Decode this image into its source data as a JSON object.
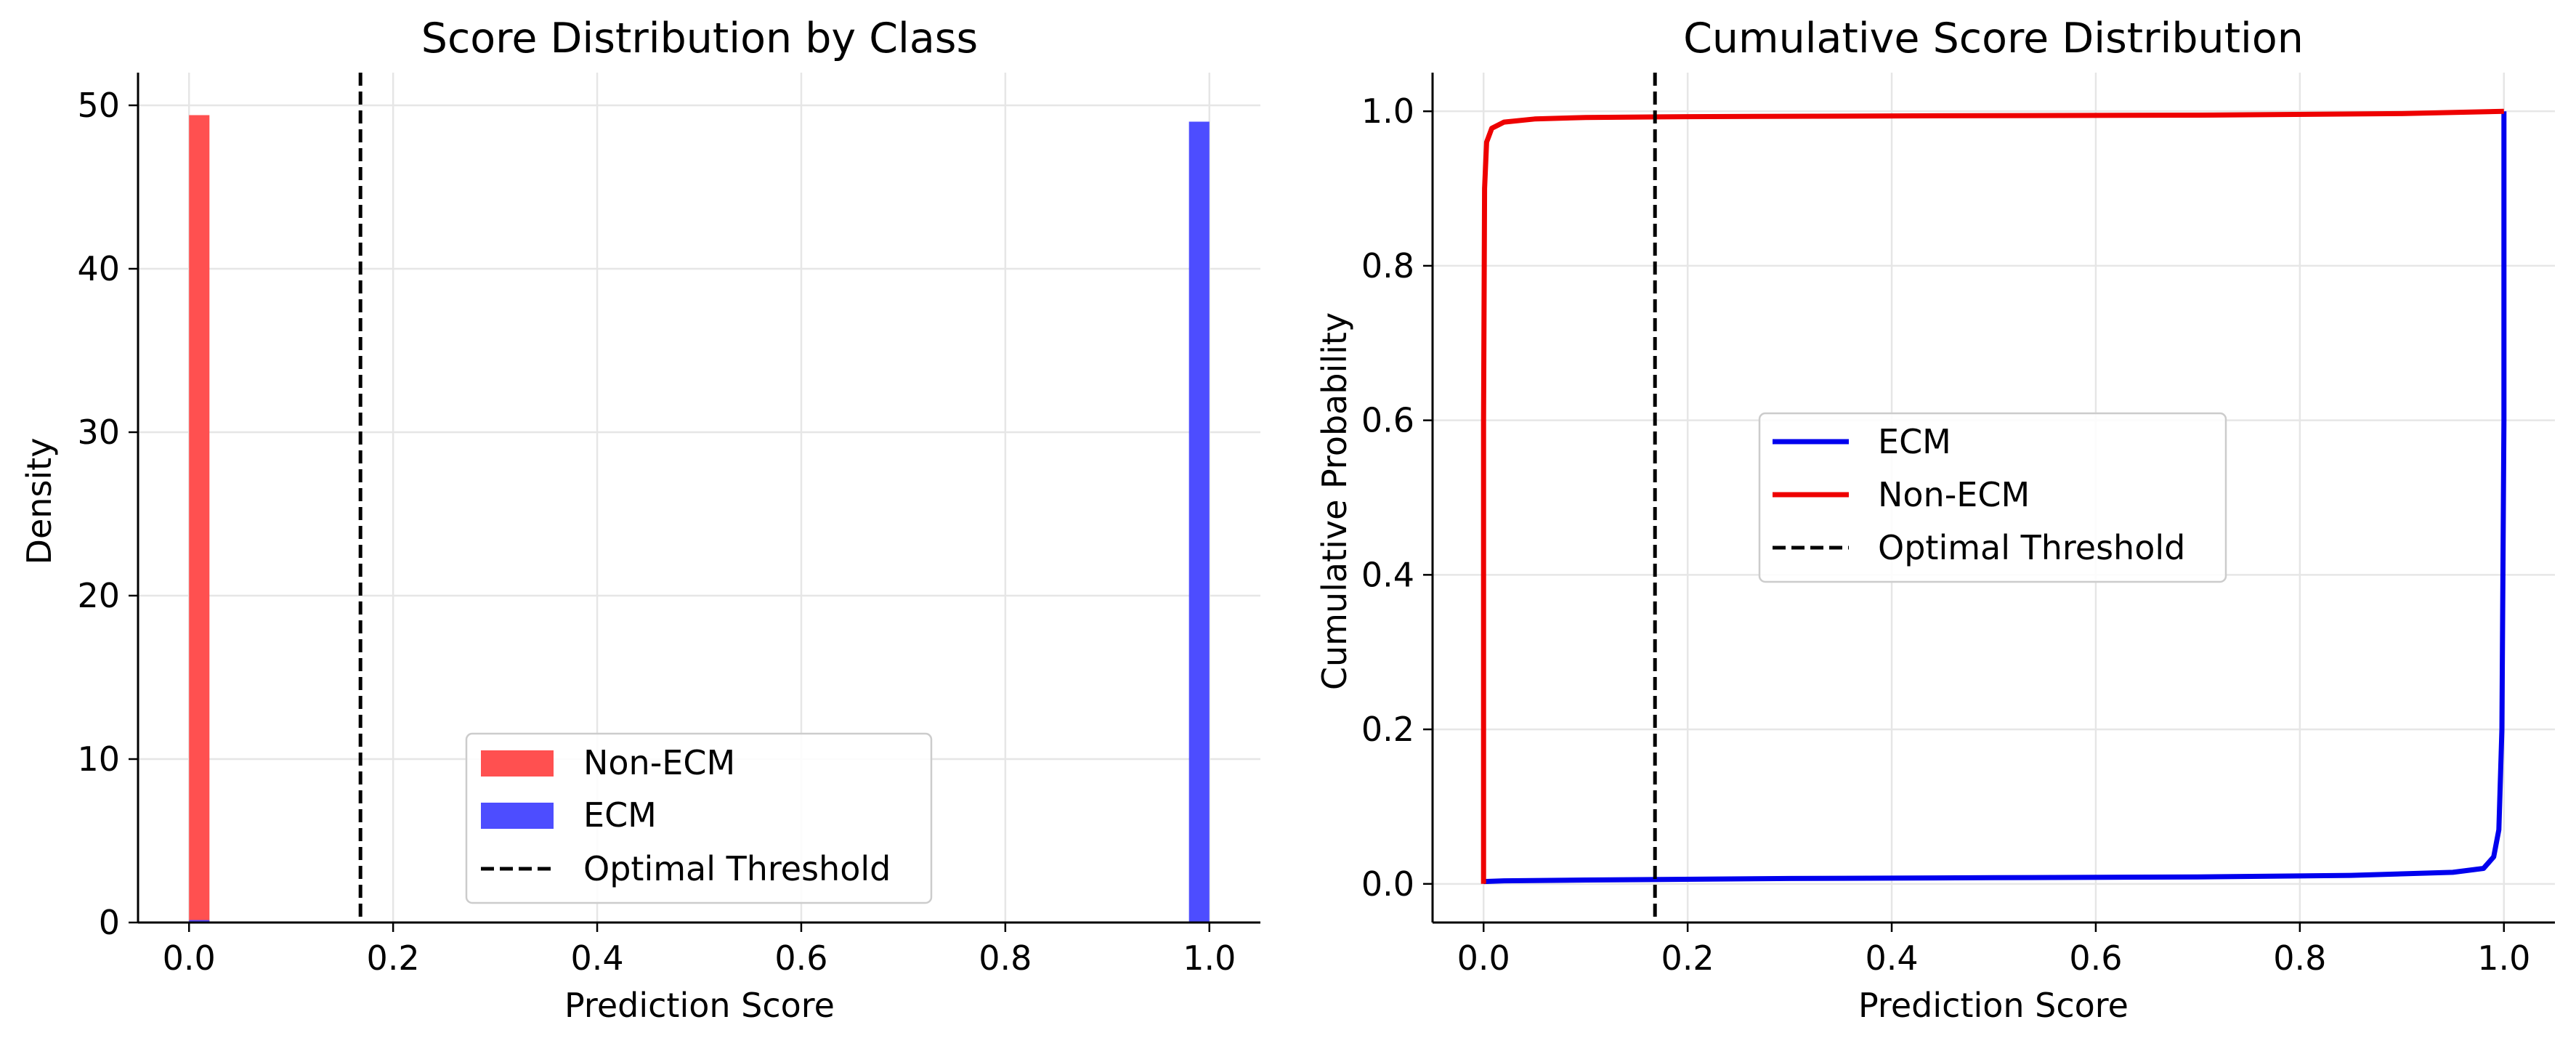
{
  "chart_data": [
    {
      "type": "bar",
      "title": "Score Distribution by Class",
      "xlabel": "Prediction Score",
      "ylabel": "Density",
      "xlim": [
        -0.05,
        1.05
      ],
      "ylim": [
        0,
        52
      ],
      "xticks": [
        "0.0",
        "0.2",
        "0.4",
        "0.6",
        "0.8",
        "1.0"
      ],
      "yticks": [
        "0",
        "10",
        "20",
        "30",
        "40",
        "50"
      ],
      "grid": true,
      "legend_position": "bottom-center",
      "bin_width": 0.02,
      "series": [
        {
          "name": "Non-ECM",
          "color": "#ff5050",
          "bins": [
            {
              "x0": 0.0,
              "x1": 0.02,
              "density": 49.4
            }
          ]
        },
        {
          "name": "ECM",
          "color": "#4d4dff",
          "bins": [
            {
              "x0": 0.0,
              "x1": 0.02,
              "density": 0.15
            },
            {
              "x0": 0.98,
              "x1": 1.0,
              "density": 49.0
            }
          ]
        }
      ],
      "threshold": {
        "name": "Optimal Threshold",
        "x": 0.168,
        "color": "#000000"
      }
    },
    {
      "type": "line",
      "title": "Cumulative Score Distribution",
      "xlabel": "Prediction Score",
      "ylabel": "Cumulative Probability",
      "xlim": [
        -0.05,
        1.05
      ],
      "ylim": [
        -0.05,
        1.05
      ],
      "xticks": [
        "0.0",
        "0.2",
        "0.4",
        "0.6",
        "0.8",
        "1.0"
      ],
      "yticks": [
        "0.0",
        "0.2",
        "0.4",
        "0.6",
        "0.8",
        "1.0"
      ],
      "grid": true,
      "legend_position": "center",
      "series": [
        {
          "name": "ECM",
          "color": "#0000ee",
          "x": [
            0.0,
            0.02,
            0.1,
            0.3,
            0.5,
            0.7,
            0.85,
            0.95,
            0.98,
            0.99,
            0.995,
            0.998,
            1.0,
            1.0
          ],
          "y": [
            0.003,
            0.004,
            0.005,
            0.007,
            0.008,
            0.009,
            0.011,
            0.015,
            0.02,
            0.035,
            0.07,
            0.2,
            0.6,
            1.0
          ]
        },
        {
          "name": "Non-ECM",
          "color": "#ee0000",
          "x": [
            0.0,
            0.0,
            0.001,
            0.003,
            0.008,
            0.02,
            0.05,
            0.1,
            0.2,
            0.4,
            0.7,
            0.9,
            1.0
          ],
          "y": [
            0.0,
            0.6,
            0.9,
            0.96,
            0.978,
            0.986,
            0.99,
            0.992,
            0.993,
            0.994,
            0.995,
            0.997,
            1.0
          ]
        }
      ],
      "threshold": {
        "name": "Optimal Threshold",
        "x": 0.168,
        "color": "#000000"
      }
    }
  ]
}
